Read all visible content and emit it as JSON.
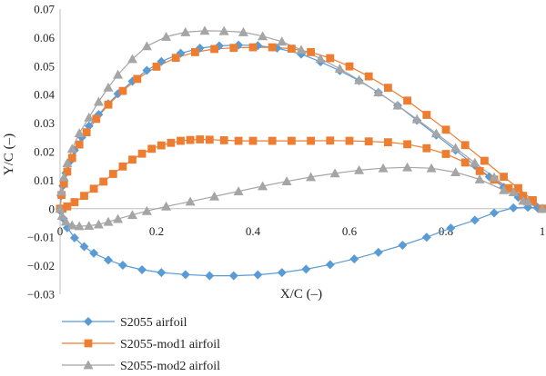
{
  "chart_data": {
    "type": "line",
    "xlabel": "X/C (–)",
    "ylabel": "Y/C (–)",
    "xlim": [
      0,
      1
    ],
    "ylim": [
      -0.03,
      0.07
    ],
    "x_ticks": [
      "0",
      "0.2",
      "0.4",
      "0.6",
      "0.8",
      "1"
    ],
    "x_tick_values": [
      0,
      0.2,
      0.4,
      0.6,
      0.8,
      1
    ],
    "y_ticks": [
      "−0.03",
      "−0.02",
      "−0.01",
      "0",
      "0.01",
      "0.02",
      "0.03",
      "0.04",
      "0.05",
      "0.06",
      "0.07"
    ],
    "y_tick_values": [
      -0.03,
      -0.02,
      -0.01,
      0,
      0.01,
      0.02,
      0.03,
      0.04,
      0.05,
      0.06,
      0.07
    ],
    "grid": false,
    "legend_position": "bottom-left",
    "series": [
      {
        "name": "S2055 airfoil",
        "color": "#5b9bd5",
        "marker": "diamond",
        "x": [
          1.0,
          0.99,
          0.97,
          0.94,
          0.9,
          0.86,
          0.81,
          0.76,
          0.71,
          0.66,
          0.61,
          0.56,
          0.51,
          0.46,
          0.41,
          0.36,
          0.31,
          0.26,
          0.21,
          0.17,
          0.13,
          0.1,
          0.07,
          0.05,
          0.03,
          0.015,
          0.007,
          0.002,
          0.0,
          0.002,
          0.006,
          0.012,
          0.02,
          0.03,
          0.045,
          0.06,
          0.08,
          0.1,
          0.12,
          0.15,
          0.18,
          0.21,
          0.25,
          0.29,
          0.33,
          0.37,
          0.41,
          0.45,
          0.5,
          0.54,
          0.58,
          0.62,
          0.66,
          0.7,
          0.74,
          0.78,
          0.82,
          0.86,
          0.89,
          0.92,
          0.95,
          0.97,
          0.99,
          1.0
        ],
        "y": [
          0.0,
          0.0003,
          0.0005,
          0.0003,
          -0.0015,
          -0.004,
          -0.0068,
          -0.01,
          -0.0128,
          -0.0153,
          -0.0176,
          -0.0196,
          -0.0212,
          -0.0224,
          -0.0232,
          -0.0235,
          -0.0235,
          -0.0231,
          -0.0224,
          -0.0214,
          -0.0198,
          -0.018,
          -0.0156,
          -0.0133,
          -0.0102,
          -0.0067,
          -0.0035,
          -0.001,
          0.0,
          0.0045,
          0.008,
          0.0125,
          0.0165,
          0.0205,
          0.025,
          0.029,
          0.033,
          0.0368,
          0.0403,
          0.0447,
          0.0485,
          0.0516,
          0.0545,
          0.0563,
          0.0571,
          0.0574,
          0.0572,
          0.0563,
          0.0542,
          0.0515,
          0.0484,
          0.0449,
          0.0408,
          0.0362,
          0.031,
          0.0258,
          0.0205,
          0.0152,
          0.0112,
          0.0075,
          0.004,
          0.002,
          0.0005,
          0.0
        ]
      },
      {
        "name": "S2055-mod1 airfoil",
        "color": "#ed7d31",
        "marker": "square",
        "x": [
          1.0,
          0.98,
          0.96,
          0.93,
          0.9,
          0.87,
          0.84,
          0.8,
          0.76,
          0.72,
          0.68,
          0.64,
          0.6,
          0.56,
          0.52,
          0.48,
          0.44,
          0.4,
          0.37,
          0.34,
          0.31,
          0.29,
          0.27,
          0.25,
          0.23,
          0.21,
          0.19,
          0.17,
          0.15,
          0.13,
          0.11,
          0.09,
          0.07,
          0.05,
          0.03,
          0.015,
          0.005,
          0.0,
          0.003,
          0.008,
          0.015,
          0.025,
          0.04,
          0.055,
          0.075,
          0.1,
          0.13,
          0.16,
          0.2,
          0.24,
          0.28,
          0.32,
          0.36,
          0.4,
          0.44,
          0.48,
          0.52,
          0.56,
          0.6,
          0.64,
          0.68,
          0.72,
          0.76,
          0.8,
          0.84,
          0.88,
          0.92,
          0.95,
          0.98,
          1.0
        ],
        "y": [
          0.0,
          0.0025,
          0.0045,
          0.0072,
          0.0102,
          0.0132,
          0.0162,
          0.0192,
          0.0212,
          0.0226,
          0.0233,
          0.0236,
          0.0238,
          0.0239,
          0.0238,
          0.0238,
          0.0238,
          0.0238,
          0.0238,
          0.024,
          0.0242,
          0.0243,
          0.0241,
          0.0238,
          0.0231,
          0.0222,
          0.021,
          0.0193,
          0.0172,
          0.0148,
          0.0122,
          0.0095,
          0.007,
          0.0045,
          0.0023,
          0.0008,
          0.0,
          0.0,
          0.0048,
          0.0088,
          0.013,
          0.0178,
          0.0225,
          0.0268,
          0.0315,
          0.0365,
          0.0413,
          0.0455,
          0.0498,
          0.0529,
          0.0549,
          0.056,
          0.0564,
          0.0566,
          0.0566,
          0.0561,
          0.0549,
          0.0528,
          0.0499,
          0.0464,
          0.0424,
          0.0379,
          0.0329,
          0.0277,
          0.0223,
          0.0168,
          0.0112,
          0.0072,
          0.003,
          0.0
        ]
      },
      {
        "name": "S2055-mod2 airfoil",
        "color": "#a5a5a5",
        "marker": "triangle",
        "x": [
          1.0,
          0.96,
          0.92,
          0.87,
          0.82,
          0.77,
          0.72,
          0.67,
          0.62,
          0.57,
          0.52,
          0.47,
          0.42,
          0.37,
          0.32,
          0.27,
          0.22,
          0.18,
          0.15,
          0.12,
          0.1,
          0.08,
          0.06,
          0.04,
          0.025,
          0.012,
          0.004,
          0.0,
          0.003,
          0.008,
          0.015,
          0.025,
          0.04,
          0.06,
          0.08,
          0.1,
          0.12,
          0.15,
          0.18,
          0.22,
          0.26,
          0.3,
          0.34,
          0.38,
          0.42,
          0.46,
          0.5,
          0.54,
          0.58,
          0.62,
          0.66,
          0.7,
          0.74,
          0.78,
          0.82,
          0.86,
          0.9,
          0.94,
          0.97,
          1.0
        ],
        "y": [
          0.0,
          0.0028,
          0.0065,
          0.0103,
          0.0128,
          0.0142,
          0.0145,
          0.0142,
          0.0135,
          0.0124,
          0.0111,
          0.0096,
          0.0079,
          0.0061,
          0.0043,
          0.0025,
          0.0008,
          -0.0008,
          -0.0022,
          -0.0036,
          -0.0046,
          -0.0055,
          -0.006,
          -0.0061,
          -0.0058,
          -0.0045,
          -0.0025,
          0.0,
          0.006,
          0.011,
          0.016,
          0.021,
          0.0265,
          0.032,
          0.0375,
          0.0425,
          0.047,
          0.0525,
          0.057,
          0.0603,
          0.0619,
          0.0624,
          0.0623,
          0.0619,
          0.0605,
          0.0586,
          0.0557,
          0.0526,
          0.0491,
          0.0451,
          0.0408,
          0.0362,
          0.0314,
          0.0264,
          0.0213,
          0.0161,
          0.011,
          0.0058,
          0.0025,
          0.0
        ]
      }
    ]
  }
}
